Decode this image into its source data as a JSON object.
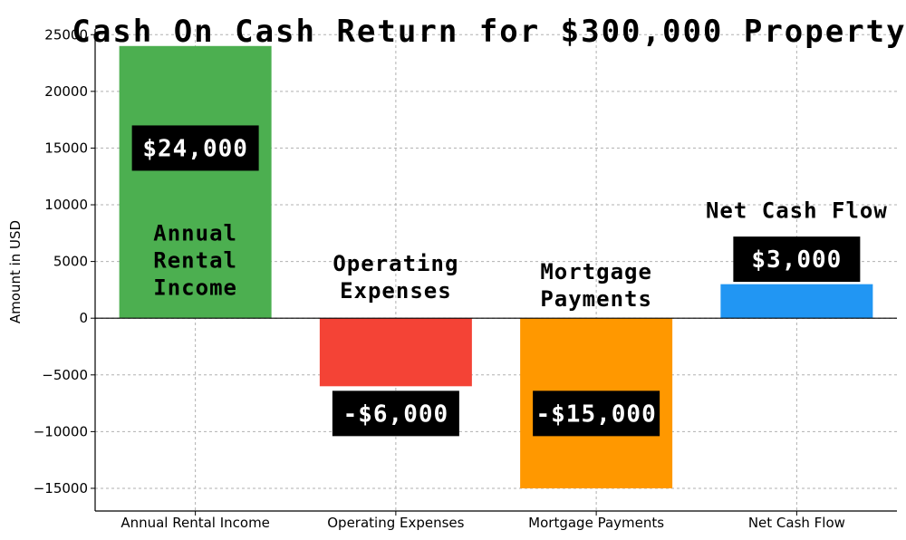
{
  "chart_data": {
    "type": "bar",
    "title": "Cash On Cash Return for $300,000 Property",
    "xlabel": "",
    "ylabel": "Amount in USD",
    "ylim": [
      -17000,
      25500
    ],
    "yticks": [
      25000,
      20000,
      15000,
      10000,
      5000,
      0,
      -5000,
      -10000,
      -15000
    ],
    "ytick_labels": [
      "25000",
      "20000",
      "15000",
      "10000",
      "5000",
      "0",
      "−5000",
      "−10000",
      "−15000"
    ],
    "grid": true,
    "categories": [
      "Annual Rental Income",
      "Operating Expenses",
      "Mortgage Payments",
      "Net Cash Flow"
    ],
    "values": [
      24000,
      -6000,
      -15000,
      3000
    ],
    "colors": [
      "#4caf50",
      "#f44336",
      "#ff9800",
      "#2196f3"
    ],
    "value_labels": [
      "$24,000",
      "-$6,000",
      "-$15,000",
      "$3,000"
    ],
    "annotations": [
      [
        "Annual",
        "Rental",
        "Income"
      ],
      [
        "Operating",
        "Expenses"
      ],
      [
        "Mortgage",
        "Payments"
      ],
      [
        "Net Cash Flow"
      ]
    ]
  }
}
